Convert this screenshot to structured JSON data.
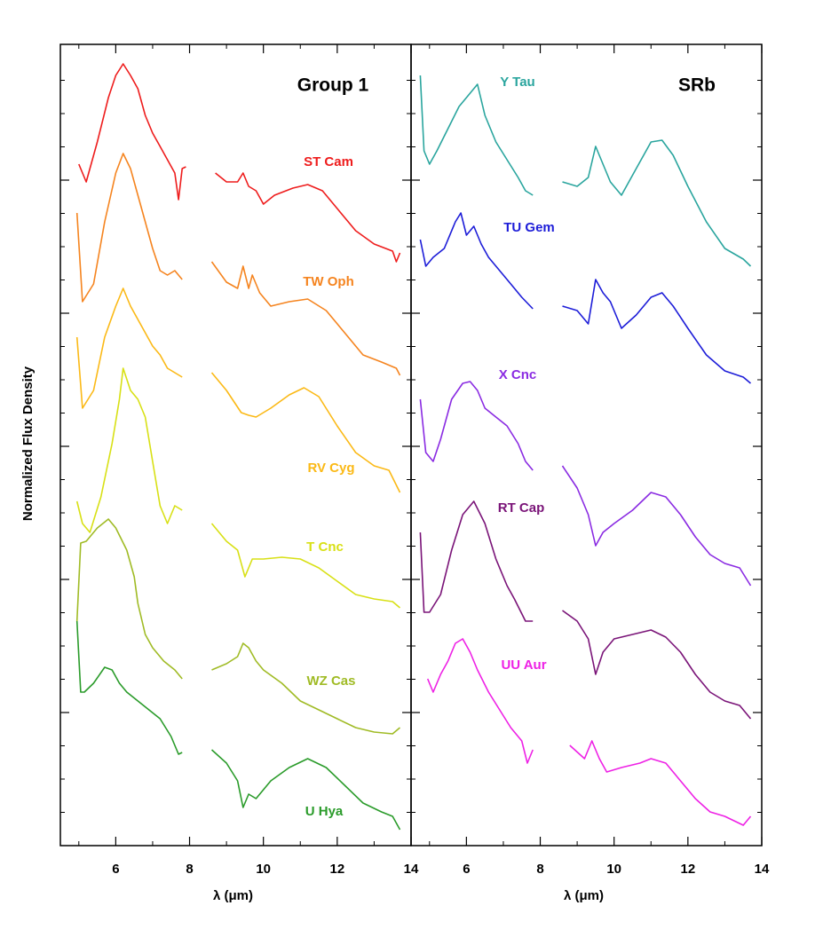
{
  "chart_data": [
    {
      "type": "line",
      "title": "Group 1",
      "xlabel": "λ (μm)",
      "ylabel": "Normalized Flux Density",
      "xlim": [
        4.5,
        14
      ],
      "xticks": [
        6,
        8,
        10,
        12,
        14
      ],
      "xminorticks": [
        5,
        7,
        9,
        11,
        13
      ],
      "ylim": [
        0,
        903
      ],
      "yticks": [
        150,
        300,
        450,
        600,
        750
      ],
      "yminorticks": [
        37.5,
        75,
        112.5,
        187.5,
        225,
        262.5,
        337.5,
        375,
        412.5,
        487.5,
        525,
        562.5,
        637.5,
        675,
        712.5,
        787.5,
        825,
        862.5
      ],
      "series": [
        {
          "name": "ST Cam",
          "color": "#ee1c1c",
          "x": [
            5.0,
            5.2,
            5.5,
            5.8,
            6.0,
            6.2,
            6.4,
            6.6,
            6.8,
            7.0,
            7.2,
            7.4,
            7.6,
            7.7,
            7.8,
            7.9,
            null,
            8.7,
            9.0,
            9.3,
            9.45,
            9.6,
            9.8,
            10.0,
            10.3,
            10.8,
            11.2,
            11.6,
            12.0,
            12.5,
            13.0,
            13.5,
            13.6,
            13.7
          ],
          "values": [
            768,
            748,
            793,
            843,
            868,
            881,
            868,
            853,
            823,
            803,
            788,
            773,
            758,
            728,
            763,
            765,
            null,
            758,
            748,
            748,
            758,
            743,
            738,
            723,
            733,
            741,
            745,
            738,
            718,
            693,
            678,
            670,
            658,
            668
          ]
        },
        {
          "name": "TW Oph",
          "color": "#f5841f",
          "x": [
            4.95,
            5.1,
            5.4,
            5.7,
            6.0,
            6.2,
            6.4,
            6.6,
            6.8,
            7.0,
            7.2,
            7.4,
            7.6,
            7.8,
            null,
            8.6,
            9.0,
            9.3,
            9.45,
            9.6,
            9.7,
            9.9,
            10.2,
            10.7,
            11.2,
            11.7,
            12.2,
            12.7,
            13.2,
            13.6,
            13.7
          ],
          "values": [
            713,
            613,
            633,
            703,
            758,
            780,
            763,
            733,
            703,
            673,
            648,
            643,
            648,
            638,
            null,
            658,
            635,
            628,
            653,
            628,
            643,
            623,
            608,
            613,
            616,
            603,
            578,
            553,
            545,
            538,
            530
          ]
        },
        {
          "name": "RV Cyg",
          "color": "#fbb916",
          "x": [
            4.95,
            5.1,
            5.4,
            5.7,
            6.0,
            6.2,
            6.4,
            6.6,
            6.8,
            7.0,
            7.2,
            7.4,
            7.6,
            7.8,
            null,
            8.6,
            9.0,
            9.4,
            9.6,
            9.8,
            10.2,
            10.7,
            11.1,
            11.5,
            12.0,
            12.5,
            13.0,
            13.4,
            13.7
          ],
          "values": [
            573,
            493,
            513,
            573,
            608,
            628,
            608,
            593,
            578,
            563,
            553,
            538,
            533,
            528,
            null,
            533,
            513,
            488,
            485,
            483,
            493,
            508,
            516,
            506,
            473,
            443,
            428,
            423,
            398
          ]
        },
        {
          "name": "T Cnc",
          "color": "#d8e015",
          "x": [
            4.95,
            5.1,
            5.3,
            5.6,
            5.9,
            6.1,
            6.2,
            6.4,
            6.6,
            6.8,
            7.0,
            7.2,
            7.4,
            7.6,
            7.8,
            null,
            8.6,
            9.0,
            9.3,
            9.5,
            9.7,
            10.0,
            10.5,
            11.0,
            11.5,
            12.0,
            12.5,
            13.0,
            13.5,
            13.7
          ],
          "values": [
            388,
            363,
            353,
            393,
            453,
            503,
            538,
            513,
            503,
            483,
            433,
            383,
            363,
            383,
            378,
            null,
            363,
            343,
            333,
            303,
            323,
            323,
            325,
            323,
            313,
            298,
            283,
            278,
            275,
            268
          ]
        },
        {
          "name": "WZ Cas",
          "color": "#a0bb25",
          "x": [
            4.95,
            5.05,
            5.2,
            5.5,
            5.8,
            6.0,
            6.3,
            6.5,
            6.6,
            6.8,
            7.0,
            7.3,
            7.6,
            7.8,
            null,
            8.6,
            9.0,
            9.3,
            9.45,
            9.6,
            9.8,
            10.0,
            10.5,
            11.0,
            11.5,
            12.0,
            12.5,
            13.0,
            13.5,
            13.7
          ],
          "values": [
            253,
            341,
            343,
            358,
            368,
            358,
            333,
            303,
            273,
            238,
            223,
            208,
            198,
            188,
            null,
            198,
            205,
            213,
            228,
            223,
            208,
            198,
            183,
            163,
            153,
            143,
            133,
            128,
            126,
            133
          ]
        },
        {
          "name": "U Hya",
          "color": "#2a9b2a",
          "x": [
            4.95,
            5.05,
            5.15,
            5.4,
            5.7,
            5.9,
            6.1,
            6.3,
            6.6,
            6.9,
            7.2,
            7.5,
            7.7,
            7.8,
            null,
            8.6,
            9.0,
            9.3,
            9.45,
            9.6,
            9.8,
            10.2,
            10.7,
            11.2,
            11.7,
            12.2,
            12.7,
            13.2,
            13.5,
            13.7
          ],
          "values": [
            253,
            173,
            173,
            183,
            201,
            198,
            183,
            173,
            163,
            153,
            143,
            123,
            103,
            105,
            null,
            108,
            93,
            73,
            43,
            58,
            53,
            73,
            88,
            98,
            88,
            68,
            48,
            38,
            33,
            18
          ]
        }
      ]
    },
    {
      "type": "line",
      "title": "SRb",
      "xlabel": "λ (μm)",
      "xlim": [
        4.5,
        14
      ],
      "xticks": [
        6,
        8,
        10,
        12,
        14
      ],
      "xminorticks": [
        5,
        7,
        9,
        11,
        13
      ],
      "ylim": [
        0,
        903
      ],
      "yticks": [
        150,
        300,
        450,
        600,
        750
      ],
      "yminorticks": [
        37.5,
        75,
        112.5,
        187.5,
        225,
        262.5,
        337.5,
        375,
        412.5,
        487.5,
        525,
        562.5,
        637.5,
        675,
        712.5,
        787.5,
        825,
        862.5
      ],
      "series": [
        {
          "name": "Y Tau",
          "color": "#2aa59e",
          "x": [
            4.75,
            4.85,
            5.0,
            5.2,
            5.5,
            5.8,
            6.0,
            6.3,
            6.5,
            6.8,
            7.1,
            7.4,
            7.6,
            7.8,
            null,
            8.6,
            9.0,
            9.3,
            9.5,
            9.7,
            9.9,
            10.2,
            10.6,
            11.0,
            11.3,
            11.6,
            12.0,
            12.5,
            13.0,
            13.5,
            13.7
          ],
          "values": [
            868,
            783,
            768,
            783,
            808,
            833,
            843,
            858,
            823,
            793,
            773,
            753,
            738,
            733,
            null,
            748,
            743,
            753,
            788,
            768,
            748,
            733,
            763,
            793,
            795,
            778,
            743,
            703,
            673,
            661,
            653
          ]
        },
        {
          "name": "TU Gem",
          "color": "#1d1dd8",
          "x": [
            4.75,
            4.9,
            5.1,
            5.4,
            5.7,
            5.85,
            6.0,
            6.2,
            6.4,
            6.6,
            6.9,
            7.2,
            7.5,
            7.8,
            null,
            8.6,
            9.0,
            9.3,
            9.5,
            9.7,
            9.9,
            10.2,
            10.6,
            11.0,
            11.3,
            11.6,
            12.0,
            12.5,
            13.0,
            13.5,
            13.7
          ],
          "values": [
            683,
            653,
            663,
            673,
            703,
            713,
            688,
            698,
            678,
            663,
            648,
            633,
            618,
            605,
            null,
            608,
            603,
            588,
            638,
            623,
            613,
            583,
            598,
            618,
            623,
            608,
            583,
            553,
            535,
            528,
            521
          ]
        },
        {
          "name": "X Cnc",
          "color": "#8a2be2",
          "x": [
            4.75,
            4.9,
            5.1,
            5.3,
            5.6,
            5.9,
            6.1,
            6.3,
            6.5,
            6.8,
            7.1,
            7.4,
            7.6,
            7.8,
            null,
            8.6,
            9.0,
            9.3,
            9.5,
            9.7,
            10.0,
            10.5,
            11.0,
            11.4,
            11.8,
            12.2,
            12.6,
            13.0,
            13.4,
            13.7
          ],
          "values": [
            503,
            443,
            433,
            458,
            503,
            521,
            523,
            513,
            493,
            483,
            473,
            453,
            433,
            423,
            null,
            428,
            403,
            373,
            338,
            353,
            363,
            378,
            398,
            393,
            373,
            348,
            328,
            318,
            313,
            293
          ]
        },
        {
          "name": "RT Cap",
          "color": "#7a1478",
          "x": [
            4.75,
            4.85,
            5.0,
            5.3,
            5.6,
            5.9,
            6.2,
            6.5,
            6.8,
            7.1,
            7.3,
            7.6,
            7.8,
            null,
            8.6,
            9.0,
            9.3,
            9.5,
            9.7,
            10.0,
            10.5,
            11.0,
            11.4,
            11.8,
            12.2,
            12.6,
            13.0,
            13.4,
            13.7
          ],
          "values": [
            353,
            263,
            263,
            283,
            333,
            373,
            388,
            363,
            323,
            293,
            278,
            253,
            253,
            null,
            265,
            253,
            233,
            193,
            218,
            233,
            238,
            243,
            235,
            218,
            193,
            173,
            163,
            158,
            143
          ]
        },
        {
          "name": "UU Aur",
          "color": "#ee21e5",
          "x": [
            4.95,
            5.1,
            5.3,
            5.5,
            5.7,
            5.9,
            6.1,
            6.3,
            6.6,
            6.9,
            7.2,
            7.5,
            7.65,
            7.8,
            null,
            8.8,
            9.2,
            9.4,
            9.6,
            9.8,
            10.2,
            10.7,
            11.0,
            11.4,
            11.8,
            12.2,
            12.6,
            13.0,
            13.5,
            13.7
          ],
          "values": [
            188,
            173,
            193,
            208,
            228,
            233,
            218,
            198,
            173,
            153,
            133,
            118,
            93,
            108,
            null,
            113,
            98,
            118,
            98,
            83,
            88,
            93,
            98,
            93,
            73,
            53,
            38,
            33,
            23,
            33
          ]
        }
      ]
    }
  ]
}
